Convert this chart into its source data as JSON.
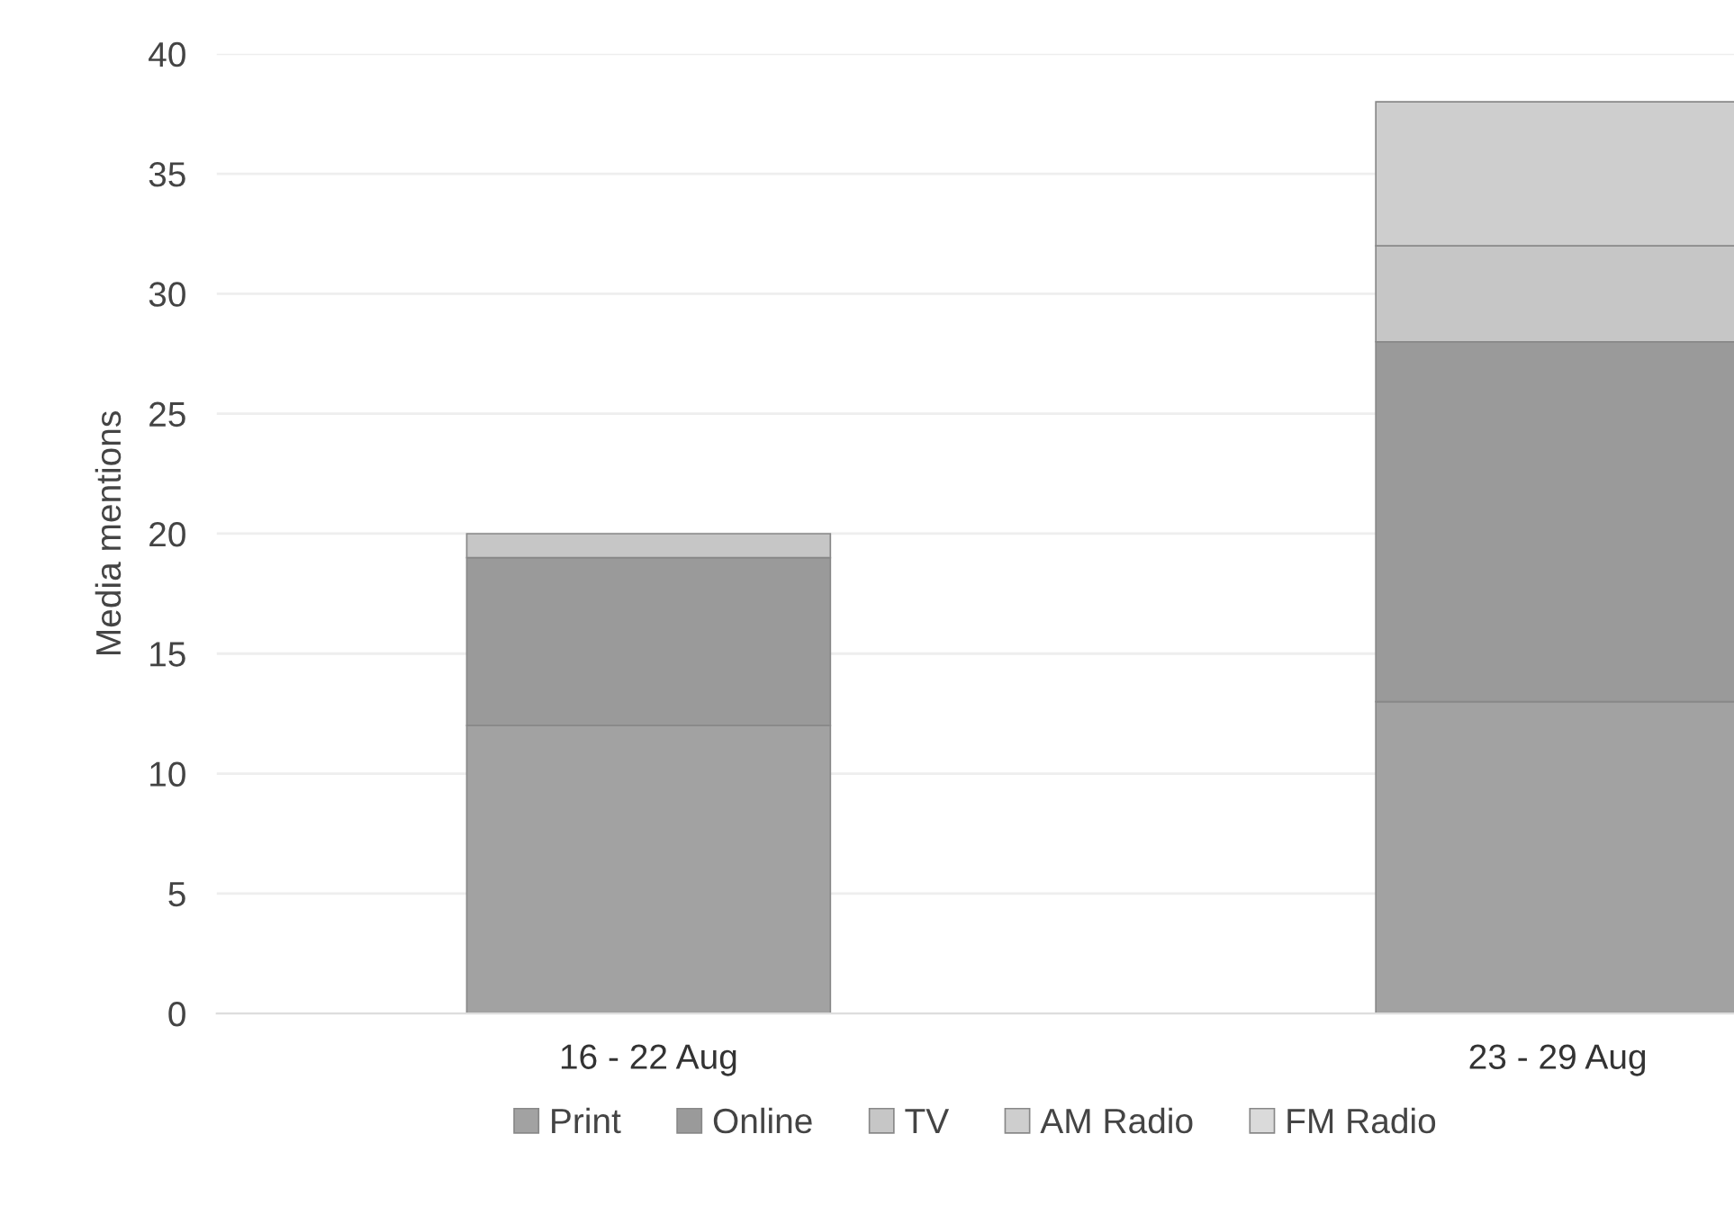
{
  "chart_data": {
    "type": "bar",
    "stacked": true,
    "ylabel": "Media mentions",
    "categories": [
      "16 - 22 Aug",
      "23 - 29 Aug"
    ],
    "series": [
      {
        "name": "Print",
        "color": "#a2a2a2",
        "values": [
          12,
          13
        ]
      },
      {
        "name": "Online",
        "color": "#9a9a9a",
        "values": [
          7,
          15
        ]
      },
      {
        "name": "TV",
        "color": "#c6c6c6",
        "values": [
          1,
          4
        ]
      },
      {
        "name": "AM Radio",
        "color": "#cecece",
        "values": [
          0,
          6
        ]
      },
      {
        "name": "FM Radio",
        "color": "#dadada",
        "values": [
          0,
          0
        ]
      }
    ],
    "ylim": [
      0,
      40
    ],
    "yticks": [
      0,
      5,
      10,
      15,
      20,
      25,
      30,
      35,
      40
    ],
    "grid": "y",
    "legend": "bottom"
  }
}
